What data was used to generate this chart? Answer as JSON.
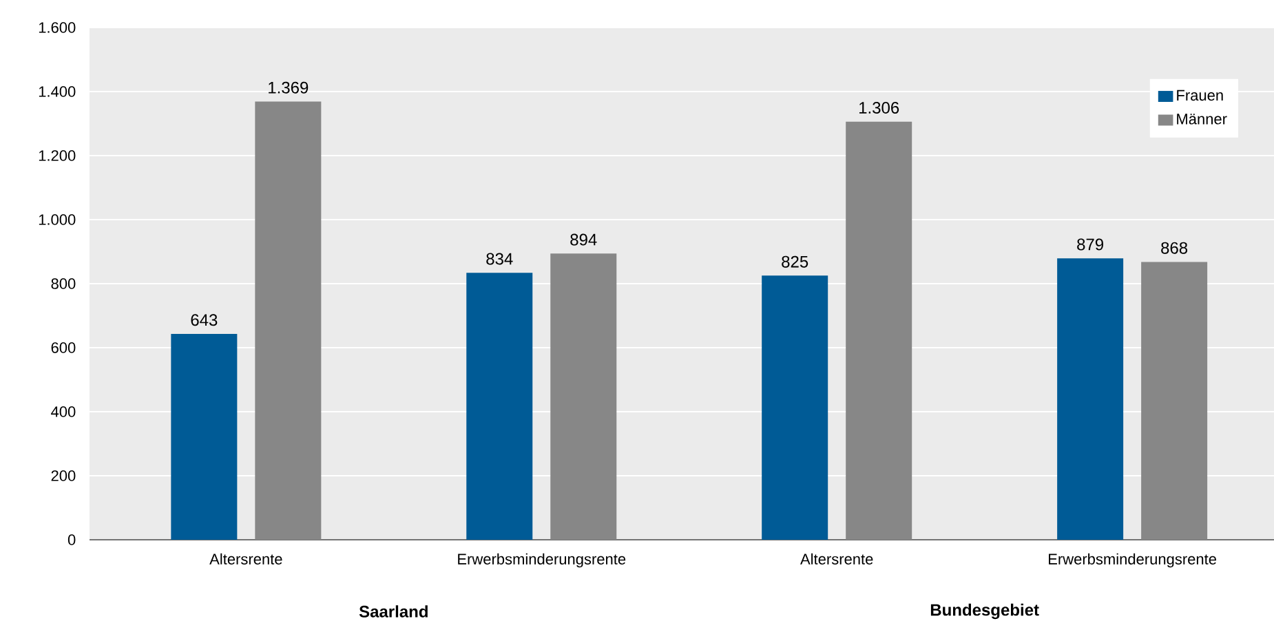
{
  "chart_data": {
    "type": "bar",
    "categories": [
      "Altersrente",
      "Erwerbsminderungsrente",
      "Altersrente",
      "Erwerbsminderungsrente"
    ],
    "series": [
      {
        "name": "Frauen",
        "color": "#005b96",
        "values": [
          643,
          834,
          825,
          879
        ],
        "value_labels": [
          "643",
          "834",
          "825",
          "879"
        ]
      },
      {
        "name": "Männer",
        "color": "#878787",
        "values": [
          1369,
          894,
          1306,
          868
        ],
        "value_labels": [
          "1.369",
          "894",
          "1.306",
          "868"
        ]
      }
    ],
    "ylim": [
      0,
      1600
    ],
    "yticks": [
      0,
      200,
      400,
      600,
      800,
      {
        "value": 1000,
        "label": "1.000"
      },
      {
        "value": 1200,
        "label": "1.200"
      },
      {
        "value": 1400,
        "label": "1.400"
      },
      {
        "value": 1600,
        "label": "1.600"
      }
    ],
    "grid": "y",
    "legend": "top right",
    "annotations": [
      "**Saarland**",
      "**Bundesgebiet**"
    ]
  }
}
